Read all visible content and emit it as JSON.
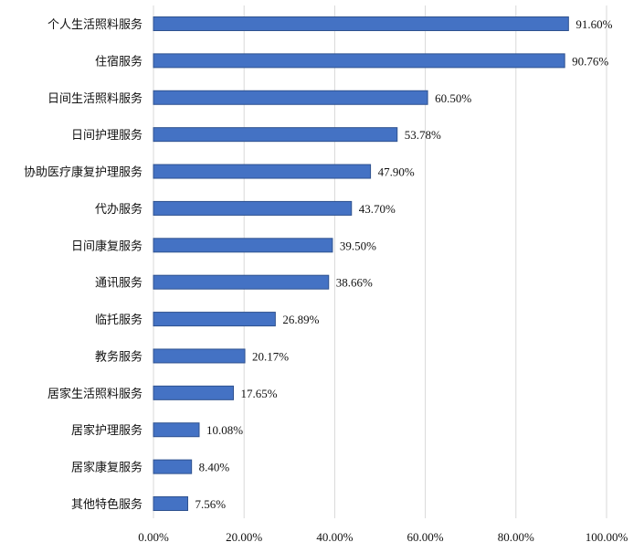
{
  "chart_data": {
    "type": "bar",
    "orientation": "horizontal",
    "categories": [
      "个人生活照料服务",
      "住宿服务",
      "日间生活照料服务",
      "日间护理服务",
      "协助医疗康复护理服务",
      "代办服务",
      "日间康复服务",
      "通讯服务",
      "临托服务",
      "教务服务",
      "居家生活照料服务",
      "居家护理服务",
      "居家康复服务",
      "其他特色服务"
    ],
    "values": [
      91.6,
      90.76,
      60.5,
      53.78,
      47.9,
      43.7,
      39.5,
      38.66,
      26.89,
      20.17,
      17.65,
      10.08,
      8.4,
      7.56
    ],
    "value_labels": [
      "91.60%",
      "90.76%",
      "60.50%",
      "53.78%",
      "47.90%",
      "43.70%",
      "39.50%",
      "38.66%",
      "26.89%",
      "20.17%",
      "17.65%",
      "10.08%",
      "8.40%",
      "7.56%"
    ],
    "xlim": [
      0,
      100
    ],
    "x_ticks": [
      "0.00%",
      "20.00%",
      "40.00%",
      "60.00%",
      "80.00%",
      "100.00%"
    ],
    "grid": true,
    "bar_color": "#4472C4",
    "bar_border_color": "#2F528F",
    "grid_color": "#D9D9D9",
    "title": "",
    "xlabel": "",
    "ylabel": ""
  }
}
